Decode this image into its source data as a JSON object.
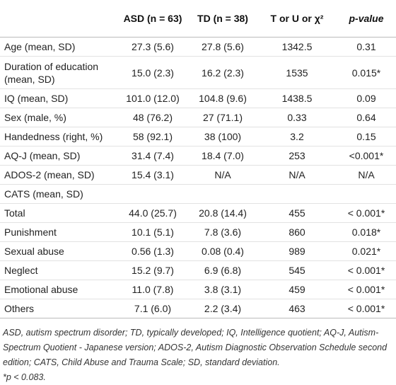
{
  "table": {
    "headers": [
      "",
      "ASD (n = 63)",
      "TD (n = 38)",
      "T or U or χ²",
      "p-value"
    ],
    "rows": [
      [
        "Age (mean, SD)",
        "27.3 (5.6)",
        "27.8 (5.6)",
        "1342.5",
        "0.31"
      ],
      [
        "Duration of education (mean, SD)",
        "15.0 (2.3)",
        "16.2 (2.3)",
        "1535",
        "0.015*"
      ],
      [
        "IQ (mean, SD)",
        "101.0 (12.0)",
        "104.8 (9.6)",
        "1438.5",
        "0.09"
      ],
      [
        "Sex (male, %)",
        "48 (76.2)",
        "27 (71.1)",
        "0.33",
        "0.64"
      ],
      [
        "Handedness (right, %)",
        "58 (92.1)",
        "38 (100)",
        "3.2",
        "0.15"
      ],
      [
        "AQ-J (mean, SD)",
        "31.4 (7.4)",
        "18.4 (7.0)",
        "253",
        "<0.001*"
      ],
      [
        "ADOS-2 (mean, SD)",
        "15.4 (3.1)",
        "N/A",
        "N/A",
        "N/A"
      ],
      [
        "CATS (mean, SD)"
      ],
      [
        "Total",
        "44.0 (25.7)",
        "20.8 (14.4)",
        "455",
        "< 0.001*"
      ],
      [
        "Punishment",
        "10.1 (5.1)",
        "7.8 (3.6)",
        "860",
        "0.018*"
      ],
      [
        "Sexual abuse",
        "0.56 (1.3)",
        "0.08 (0.4)",
        "989",
        "0.021*"
      ],
      [
        "Neglect",
        "15.2 (9.7)",
        "6.9 (6.8)",
        "545",
        "< 0.001*"
      ],
      [
        "Emotional abuse",
        "11.0 (7.8)",
        "3.8 (3.1)",
        "459",
        "< 0.001*"
      ],
      [
        "Others",
        "7.1 (6.0)",
        "2.2 (3.4)",
        "463",
        "< 0.001*"
      ]
    ]
  },
  "footnote": [
    "ASD, autism spectrum disorder; TD, typically developed; IQ, Intelligence quotient; AQ-J, Autism-Spectrum Quotient - Japanese version; ADOS-2, Autism Diagnostic Observation Schedule second edition; CATS, Child Abuse and Trauma Scale; SD, standard deviation.",
    "*p < 0.083."
  ]
}
